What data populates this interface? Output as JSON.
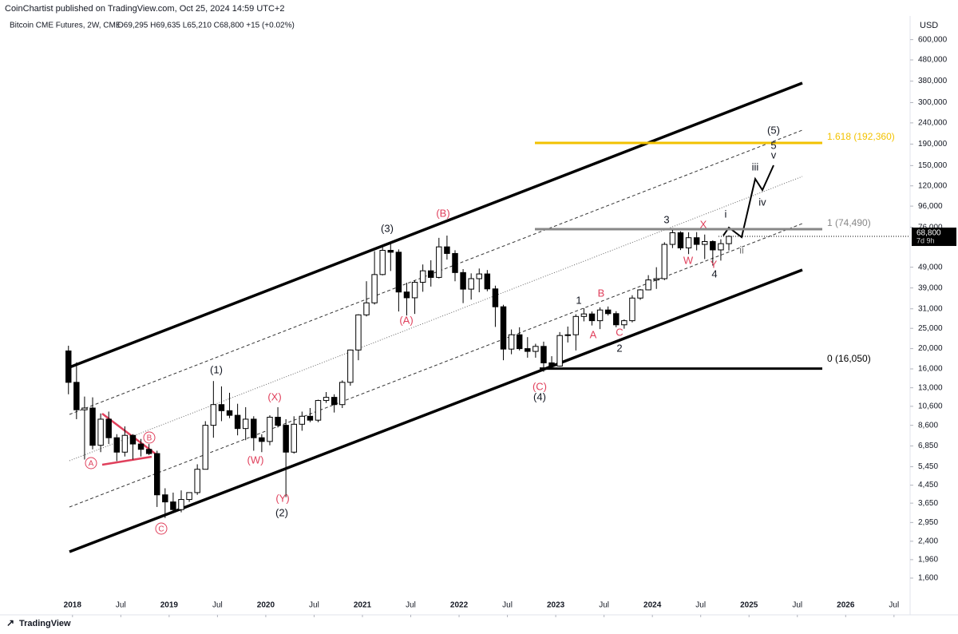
{
  "header": {
    "publisher": "CoinChartist published on TradingView.com, Oct 25, 2024 14:59 UTC+2",
    "symbol": "Bitcoin CME Futures, 2W, CME",
    "ohlc": "O69,295 H69,635 L65,210 C68,800 +15 (+0.02%)"
  },
  "footer": {
    "brand": "TradingView"
  },
  "chart_data": {
    "type": "candlestick",
    "currency": "USD",
    "log_scale": true,
    "x": [
      "2017-12",
      "2018-01",
      "2018-02",
      "2018-03",
      "2018-04",
      "2018-05",
      "2018-06",
      "2018-07",
      "2018-08",
      "2018-09",
      "2018-10",
      "2018-11",
      "2018-12",
      "2019-01",
      "2019-02",
      "2019-03",
      "2019-04",
      "2019-05",
      "2019-06",
      "2019-07",
      "2019-08",
      "2019-09",
      "2019-10",
      "2019-11",
      "2019-12",
      "2020-01",
      "2020-02",
      "2020-03",
      "2020-04",
      "2020-05",
      "2020-06",
      "2020-07",
      "2020-08",
      "2020-09",
      "2020-10",
      "2020-11",
      "2020-12",
      "2021-01",
      "2021-02",
      "2021-03",
      "2021-04",
      "2021-05",
      "2021-06",
      "2021-07",
      "2021-08",
      "2021-09",
      "2021-10",
      "2021-11",
      "2021-12",
      "2022-01",
      "2022-02",
      "2022-03",
      "2022-04",
      "2022-05",
      "2022-06",
      "2022-07",
      "2022-08",
      "2022-09",
      "2022-10",
      "2022-11",
      "2022-12",
      "2023-01",
      "2023-02",
      "2023-03",
      "2023-04",
      "2023-05",
      "2023-06",
      "2023-07",
      "2023-08",
      "2023-09",
      "2023-10",
      "2023-11",
      "2023-12",
      "2024-01",
      "2024-02",
      "2024-03",
      "2024-04",
      "2024-05",
      "2024-06",
      "2024-07",
      "2024-08",
      "2024-09",
      "2024-10"
    ],
    "open": [
      19500,
      13800,
      10200,
      10400,
      6900,
      9200,
      7500,
      6400,
      7700,
      7000,
      6600,
      6300,
      4000,
      3700,
      3400,
      3800,
      4100,
      5300,
      8600,
      10800,
      10100,
      9600,
      8300,
      9200,
      7500,
      7200,
      9400,
      8600,
      6400,
      8700,
      9500,
      9100,
      11300,
      11700,
      10800,
      13800,
      19700,
      29000,
      33100,
      45200,
      59000,
      57800,
      37300,
      35000,
      41500,
      47100,
      43800,
      61300,
      57000,
      46200,
      38500,
      43200,
      45500,
      38600,
      31700,
      19900,
      23300,
      20000,
      19400,
      20500,
      17100,
      16500,
      23100,
      23300,
      28500,
      29300,
      27200,
      30600,
      29400,
      26000,
      27200,
      34900,
      38200,
      42600,
      43200,
      63000,
      71600,
      60600,
      67800,
      63000,
      65000,
      59300,
      63500
    ],
    "high": [
      20650,
      17200,
      11800,
      11700,
      9800,
      10000,
      7800,
      8500,
      7800,
      7400,
      7000,
      6500,
      4300,
      4100,
      4200,
      4100,
      5600,
      9000,
      14000,
      13200,
      12300,
      10900,
      10500,
      9500,
      7800,
      9600,
      10500,
      9200,
      9500,
      10000,
      10400,
      11400,
      12400,
      12100,
      14100,
      19800,
      29200,
      42000,
      58500,
      61700,
      64900,
      59600,
      41300,
      42400,
      50500,
      52900,
      67700,
      69400,
      59100,
      48000,
      45800,
      48300,
      47500,
      40000,
      32400,
      24700,
      25300,
      22700,
      21100,
      21600,
      18400,
      24000,
      25500,
      29200,
      31200,
      30100,
      31500,
      31800,
      30200,
      27600,
      36000,
      38500,
      44900,
      49000,
      64500,
      73800,
      72800,
      72000,
      72100,
      70200,
      65900,
      66600,
      69600
    ],
    "low": [
      12100,
      9200,
      5900,
      6600,
      6400,
      7000,
      5800,
      6100,
      5900,
      6100,
      6200,
      3500,
      3100,
      3300,
      3300,
      3700,
      4000,
      5300,
      7500,
      9000,
      9300,
      7700,
      7300,
      6500,
      6400,
      6900,
      8400,
      3900,
      6300,
      8100,
      8900,
      8900,
      11000,
      9900,
      10400,
      13300,
      17600,
      28500,
      32500,
      44800,
      47000,
      30100,
      28800,
      29300,
      37400,
      39600,
      43300,
      53300,
      42000,
      33000,
      34300,
      37200,
      37600,
      25400,
      17600,
      18800,
      19600,
      18100,
      18100,
      15500,
      16300,
      16400,
      21400,
      19600,
      27000,
      25800,
      24800,
      28800,
      25300,
      24900,
      26700,
      34200,
      38000,
      38600,
      42500,
      60500,
      59200,
      56600,
      59000,
      53600,
      49900,
      52700,
      58900
    ],
    "close": [
      13800,
      10200,
      10400,
      6900,
      9200,
      7500,
      6400,
      7700,
      7000,
      6600,
      6300,
      4000,
      3700,
      3400,
      3800,
      4100,
      5300,
      8600,
      10800,
      10100,
      9600,
      8300,
      9200,
      7500,
      7200,
      9400,
      8600,
      6400,
      8700,
      9500,
      9100,
      11300,
      11700,
      10800,
      13800,
      19700,
      29000,
      33100,
      45200,
      59000,
      57800,
      37300,
      35000,
      41500,
      47100,
      43800,
      61300,
      57000,
      46200,
      38500,
      43200,
      45500,
      38600,
      31700,
      19900,
      23300,
      20000,
      19400,
      20500,
      17100,
      16500,
      23100,
      23300,
      28500,
      29300,
      27200,
      30600,
      29400,
      26000,
      27200,
      34900,
      38200,
      42600,
      43200,
      63000,
      71600,
      60600,
      67800,
      63000,
      65000,
      59300,
      63500,
      68800
    ],
    "last_price": {
      "value": 68800,
      "label": "68,800"
    },
    "countdown": "7d 9h",
    "xlim": [
      "2017-04",
      "2026-09"
    ],
    "xticks": [
      {
        "value": "2018-01",
        "label": "2018"
      },
      {
        "value": "2018-07",
        "label": "Jul"
      },
      {
        "value": "2019-01",
        "label": "2019"
      },
      {
        "value": "2019-07",
        "label": "Jul"
      },
      {
        "value": "2020-01",
        "label": "2020"
      },
      {
        "value": "2020-07",
        "label": "Jul"
      },
      {
        "value": "2021-01",
        "label": "2021"
      },
      {
        "value": "2021-07",
        "label": "Jul"
      },
      {
        "value": "2022-01",
        "label": "2022"
      },
      {
        "value": "2022-07",
        "label": "Jul"
      },
      {
        "value": "2023-01",
        "label": "2023"
      },
      {
        "value": "2023-07",
        "label": "Jul"
      },
      {
        "value": "2024-01",
        "label": "2024"
      },
      {
        "value": "2024-07",
        "label": "Jul"
      },
      {
        "value": "2025-01",
        "label": "2025"
      },
      {
        "value": "2025-07",
        "label": "Jul"
      },
      {
        "value": "2026-01",
        "label": "2026"
      },
      {
        "value": "2026-07",
        "label": "Jul"
      }
    ],
    "ylim": [
      1330,
      713000
    ],
    "yticks": [
      {
        "value": 600000,
        "label": "600,000"
      },
      {
        "value": 480000,
        "label": "480,000"
      },
      {
        "value": 380000,
        "label": "380,000"
      },
      {
        "value": 300000,
        "label": "300,000"
      },
      {
        "value": 240000,
        "label": "240,000"
      },
      {
        "value": 190000,
        "label": "190,000"
      },
      {
        "value": 150000,
        "label": "150,000"
      },
      {
        "value": 120000,
        "label": "120,000"
      },
      {
        "value": 96000,
        "label": "96,000"
      },
      {
        "value": 76000,
        "label": "76,000"
      },
      {
        "value": 49000,
        "label": "49,000"
      },
      {
        "value": 39000,
        "label": "39,000"
      },
      {
        "value": 31000,
        "label": "31,000"
      },
      {
        "value": 25000,
        "label": "25,000"
      },
      {
        "value": 20000,
        "label": "20,000"
      },
      {
        "value": 16000,
        "label": "16,000"
      },
      {
        "value": 13000,
        "label": "13,000"
      },
      {
        "value": 10600,
        "label": "10,600"
      },
      {
        "value": 8600,
        "label": "8,600"
      },
      {
        "value": 6850,
        "label": "6,850"
      },
      {
        "value": 5450,
        "label": "5,450"
      },
      {
        "value": 4450,
        "label": "4,450"
      },
      {
        "value": 3650,
        "label": "3,650"
      },
      {
        "value": 2950,
        "label": "2,950"
      },
      {
        "value": 2400,
        "label": "2,400"
      },
      {
        "value": 1960,
        "label": "1,960"
      },
      {
        "value": 1600,
        "label": "1,600"
      }
    ],
    "levels": [
      {
        "value": 192360,
        "label": "1.618 (192,360)",
        "color": "#f2c200"
      },
      {
        "value": 74490,
        "label": "1 (74,490)",
        "color": "#888888"
      },
      {
        "value": 16050,
        "label": "0 (16,050)",
        "color": "#000000"
      }
    ],
    "wave_labels": [
      "(1)",
      "(2)",
      "(3)",
      "(4)",
      "(5)",
      "1",
      "2",
      "3",
      "4",
      "5",
      "i",
      "ii",
      "iii",
      "iv",
      "v",
      "(A)",
      "(B)",
      "(C)",
      "(W)",
      "(X)",
      "(Y)",
      "A",
      "B",
      "C",
      "W",
      "X",
      "Y",
      "A",
      "B",
      "C"
    ]
  }
}
